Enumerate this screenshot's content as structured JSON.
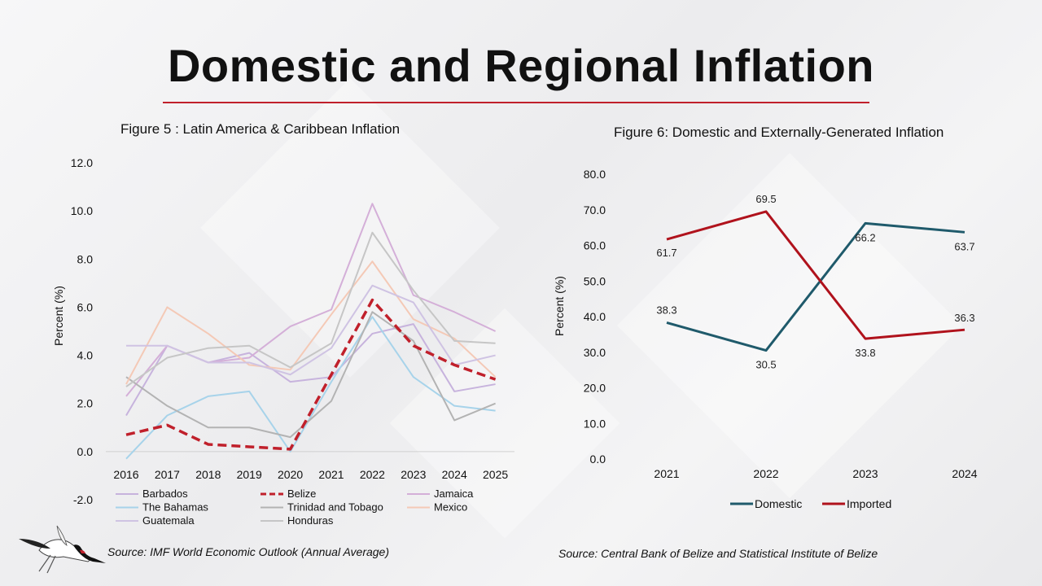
{
  "title": "Domestic and Regional Inflation",
  "chart_data": [
    {
      "type": "line",
      "title": "Figure 5 : Latin America & Caribbean Inflation",
      "ylabel": "Percent (%)",
      "xlabel": "",
      "ylim": [
        -2.0,
        12.0
      ],
      "yticks": [
        "-2.0",
        "0.0",
        "2.0",
        "4.0",
        "6.0",
        "8.0",
        "10.0",
        "12.0"
      ],
      "categories": [
        "2016",
        "2017",
        "2018",
        "2019",
        "2020",
        "2021",
        "2022",
        "2023",
        "2024",
        "2025"
      ],
      "legend_position": "bottom",
      "source": "Source: IMF World Economic Outlook  (Annual Average)",
      "series": [
        {
          "name": "Barbados",
          "color": "#c7b3dd",
          "values": [
            1.5,
            4.4,
            3.7,
            4.1,
            2.9,
            3.1,
            4.9,
            5.3,
            2.5,
            2.8
          ]
        },
        {
          "name": "Belize",
          "color": "#c0202b",
          "dashed": true,
          "values": [
            0.7,
            1.1,
            0.3,
            0.2,
            0.1,
            3.2,
            6.3,
            4.4,
            3.6,
            3.0
          ]
        },
        {
          "name": "Jamaica",
          "color": "#d4afd8",
          "values": [
            2.3,
            4.4,
            3.7,
            3.9,
            5.2,
            5.9,
            10.3,
            6.5,
            5.8,
            5.0
          ]
        },
        {
          "name": "The Bahamas",
          "color": "#a7d3ea",
          "values": [
            -0.3,
            1.5,
            2.3,
            2.5,
            0.0,
            2.9,
            5.6,
            3.1,
            1.9,
            1.7
          ]
        },
        {
          "name": "Trinidad and Tobago",
          "color": "#b3b3b3",
          "values": [
            3.1,
            1.9,
            1.0,
            1.0,
            0.6,
            2.1,
            5.8,
            4.6,
            1.3,
            2.0
          ]
        },
        {
          "name": "Mexico",
          "color": "#f4c9b6",
          "values": [
            2.8,
            6.0,
            4.9,
            3.6,
            3.4,
            5.7,
            7.9,
            5.5,
            4.7,
            3.1
          ]
        },
        {
          "name": "Guatemala",
          "color": "#cfc3e3",
          "values": [
            4.4,
            4.4,
            3.7,
            3.7,
            3.2,
            4.3,
            6.9,
            6.2,
            3.6,
            4.0
          ]
        },
        {
          "name": "Honduras",
          "color": "#c6c6c6",
          "values": [
            2.7,
            3.9,
            4.3,
            4.4,
            3.5,
            4.5,
            9.1,
            6.7,
            4.6,
            4.5
          ]
        }
      ]
    },
    {
      "type": "line",
      "title": "Figure 6: Domestic and Externally-Generated Inflation",
      "ylabel": "Percent (%)",
      "xlabel": "",
      "ylim": [
        0.0,
        80.0
      ],
      "yticks": [
        "0.0",
        "10.0",
        "20.0",
        "30.0",
        "40.0",
        "50.0",
        "60.0",
        "70.0",
        "80.0"
      ],
      "categories": [
        "2021",
        "2022",
        "2023",
        "2024"
      ],
      "legend_position": "bottom",
      "source": "Source: Central Bank of Belize and Statistical Institute of Belize",
      "series": [
        {
          "name": "Domestic",
          "color": "#1f5a6b",
          "values": [
            38.3,
            30.5,
            66.2,
            63.7
          ],
          "labels": [
            "38.3",
            "30.5",
            "66.2",
            "63.7"
          ]
        },
        {
          "name": "Imported",
          "color": "#b0121c",
          "values": [
            61.7,
            69.5,
            33.8,
            36.3
          ],
          "labels": [
            "61.7",
            "69.5",
            "33.8",
            "36.3"
          ]
        }
      ]
    }
  ]
}
